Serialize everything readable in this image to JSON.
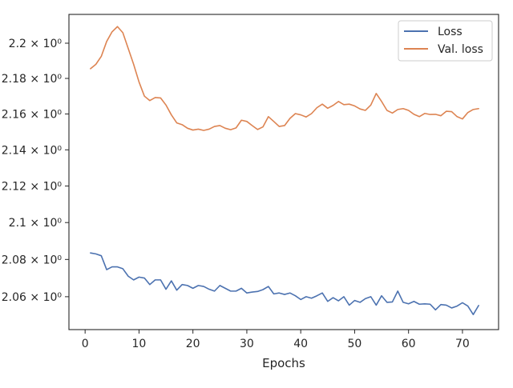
{
  "chart_data": {
    "type": "line",
    "title": "",
    "xlabel": "Epochs",
    "ylabel": "",
    "xlim": [
      -3,
      76.7
    ],
    "ylim": [
      2.0425,
      2.2165
    ],
    "yscale": "log",
    "grid": false,
    "legend_placement": "top-right",
    "x_ticks": [
      0,
      10,
      20,
      30,
      40,
      50,
      60,
      70
    ],
    "x_tick_labels": [
      "0",
      "10",
      "20",
      "30",
      "40",
      "50",
      "60",
      "70"
    ],
    "y_ticks": [
      2.06,
      2.08,
      2.1,
      2.12,
      2.14,
      2.16,
      2.18,
      2.2
    ],
    "y_tick_labels": [
      "2.06 × 10⁰",
      "2.08 × 10⁰",
      "2.1 × 10⁰",
      "2.12 × 10⁰",
      "2.14 × 10⁰",
      "2.16 × 10⁰",
      "2.18 × 10⁰",
      "2.2 × 10⁰"
    ],
    "x": [
      1,
      2,
      3,
      4,
      5,
      6,
      7,
      8,
      9,
      10,
      11,
      12,
      13,
      14,
      15,
      16,
      17,
      18,
      19,
      20,
      21,
      22,
      23,
      24,
      25,
      26,
      27,
      28,
      29,
      30,
      31,
      32,
      33,
      34,
      35,
      36,
      37,
      38,
      39,
      40,
      41,
      42,
      43,
      44,
      45,
      46,
      47,
      48,
      49,
      50,
      51,
      52,
      53,
      54,
      55,
      56,
      57,
      58,
      59,
      60,
      61,
      62,
      63,
      64,
      65,
      66,
      67,
      68,
      69,
      70,
      71,
      72,
      73
    ],
    "series": [
      {
        "name": "Loss",
        "color": "#4c72b0",
        "values": [
          2.0835,
          2.083,
          2.082,
          2.0745,
          2.076,
          2.076,
          2.075,
          2.071,
          2.069,
          2.0705,
          2.07,
          2.0665,
          2.069,
          2.069,
          2.064,
          2.0685,
          2.0635,
          2.0665,
          2.066,
          2.0645,
          2.066,
          2.0655,
          2.064,
          2.063,
          2.066,
          2.0645,
          2.063,
          2.063,
          2.0645,
          2.062,
          2.0625,
          2.0628,
          2.0638,
          2.0655,
          2.0615,
          2.062,
          2.0612,
          2.062,
          2.0605,
          2.0585,
          2.06,
          2.0592,
          2.0605,
          2.062,
          2.0575,
          2.0595,
          2.0578,
          2.06,
          2.0555,
          2.058,
          2.057,
          2.059,
          2.06,
          2.0555,
          2.0605,
          2.057,
          2.0572,
          2.063,
          2.057,
          2.0562,
          2.0575,
          2.056,
          2.0562,
          2.056,
          2.053,
          2.0558,
          2.0555,
          2.054,
          2.055,
          2.0568,
          2.055,
          2.0505,
          2.0553
        ]
      },
      {
        "name": "Val. loss",
        "color": "#dd8452",
        "values": [
          2.1855,
          2.188,
          2.1925,
          2.201,
          2.2065,
          2.2095,
          2.206,
          2.197,
          2.188,
          2.178,
          2.17,
          2.1675,
          2.1692,
          2.169,
          2.165,
          2.1595,
          2.155,
          2.154,
          2.152,
          2.151,
          2.1515,
          2.1508,
          2.1515,
          2.153,
          2.1535,
          2.152,
          2.1512,
          2.1522,
          2.1565,
          2.1558,
          2.1535,
          2.1513,
          2.1528,
          2.1585,
          2.1558,
          2.153,
          2.1535,
          2.1575,
          2.1602,
          2.1595,
          2.1583,
          2.1602,
          2.1635,
          2.1655,
          2.1632,
          2.1648,
          2.167,
          2.1652,
          2.1655,
          2.1645,
          2.1628,
          2.162,
          2.165,
          2.1715,
          2.167,
          2.162,
          2.1605,
          2.1625,
          2.163,
          2.162,
          2.1598,
          2.1585,
          2.1603,
          2.1597,
          2.1598,
          2.159,
          2.1615,
          2.1613,
          2.1585,
          2.1572,
          2.1608,
          2.1625,
          2.163
        ]
      }
    ]
  }
}
